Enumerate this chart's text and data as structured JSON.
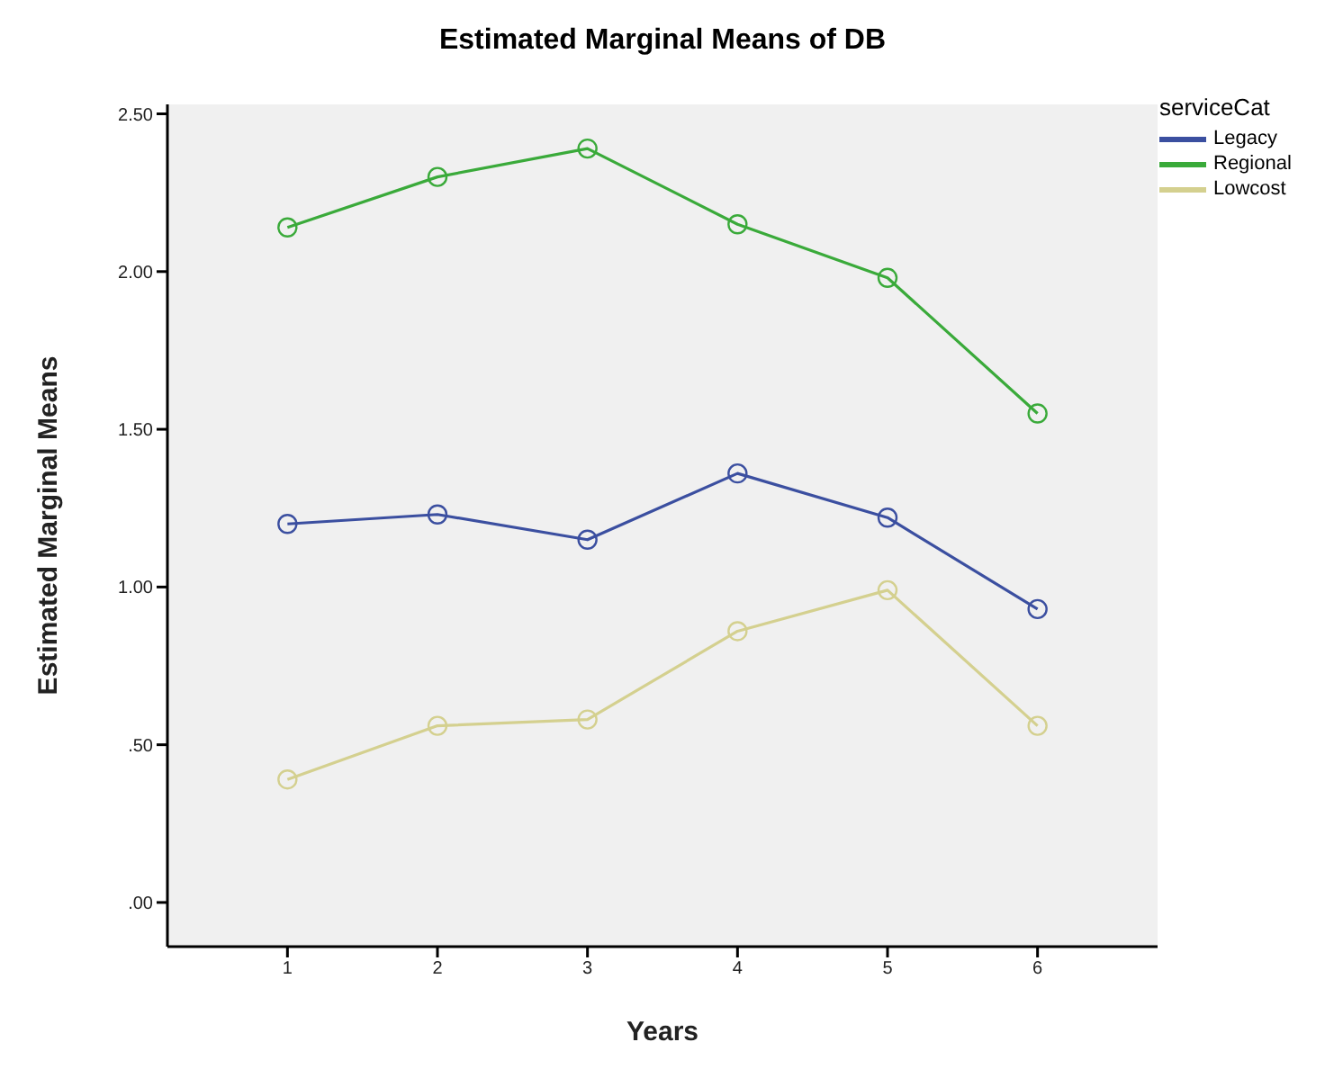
{
  "chart_data": {
    "type": "line",
    "title": "Estimated Marginal Means of DB",
    "xlabel": "Years",
    "ylabel": "Estimated Marginal Means",
    "legend_title": "serviceCat",
    "x": [
      1,
      2,
      3,
      4,
      5,
      6
    ],
    "series": [
      {
        "name": "Legacy",
        "color": "#3b4fa0",
        "values": [
          1.2,
          1.23,
          1.15,
          1.36,
          1.22,
          0.93
        ]
      },
      {
        "name": "Regional",
        "color": "#3aaa3a",
        "values": [
          2.14,
          2.3,
          2.39,
          2.15,
          1.98,
          1.55
        ]
      },
      {
        "name": "Lowcost",
        "color": "#d4d08f",
        "values": [
          0.39,
          0.56,
          0.58,
          0.86,
          0.99,
          0.56
        ]
      }
    ],
    "xlim": [
      0.2,
      6.8
    ],
    "xticks": [
      1,
      2,
      3,
      4,
      5,
      6
    ],
    "ylim": [
      -0.14,
      2.53
    ],
    "yticks": [
      {
        "value": 0,
        "label": ".00"
      },
      {
        "value": 0.5,
        "label": ".50"
      },
      {
        "value": 1,
        "label": "1.00"
      },
      {
        "value": 1.5,
        "label": "1.50"
      },
      {
        "value": 2,
        "label": "2.00"
      },
      {
        "value": 2.5,
        "label": "2.50"
      }
    ],
    "marker": "circle",
    "line_style": "solid",
    "legend": "right",
    "grid": false
  }
}
